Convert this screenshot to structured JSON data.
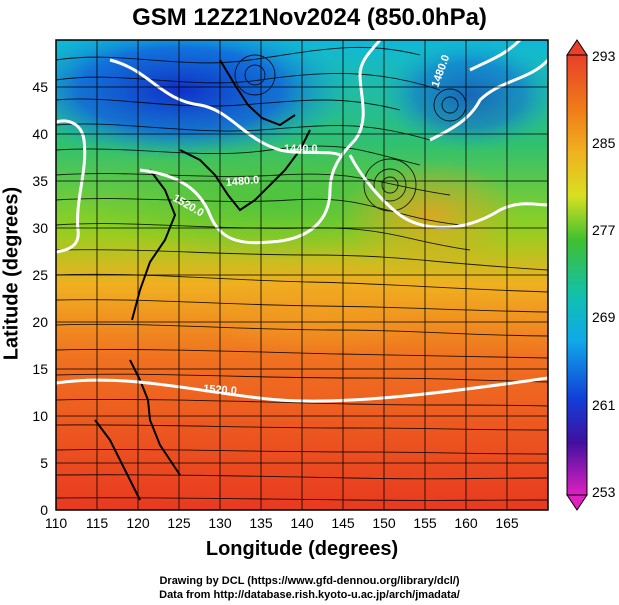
{
  "title": "GSM 12Z21Nov2024 (850.0hPa)",
  "x_axis": {
    "label": "Longitude (degrees)",
    "ticks": [
      "110",
      "115",
      "120",
      "125",
      "130",
      "135",
      "140",
      "145",
      "150",
      "155",
      "160",
      "165"
    ]
  },
  "y_axis": {
    "label": "Latitude  (degrees)",
    "ticks": [
      "0",
      "5",
      "10",
      "15",
      "20",
      "25",
      "30",
      "35",
      "40",
      "45"
    ]
  },
  "colorbar": {
    "ticks": [
      "293",
      "285",
      "277",
      "269",
      "261",
      "253"
    ]
  },
  "contours": {
    "labels": [
      "1440.0",
      "1480.0",
      "1520.0",
      "1520.0",
      "1480.0"
    ]
  },
  "credits": {
    "line1": "Drawing by DCL (https://www.gfd-dennou.org/library/dcl/)",
    "line2": "Data from http://database.rish.kyoto-u.ac.jp/arch/jmadata/"
  },
  "colors": {
    "cold": "#1040d0",
    "cool": "#00b0d0",
    "mild": "#30c030",
    "warm": "#f0c020",
    "hot": "#e83a20",
    "contour": "#ffffff"
  },
  "chart_data": {
    "type": "heatmap",
    "title": "GSM 12Z21Nov2024 (850.0hPa)",
    "xlabel": "Longitude (degrees)",
    "ylabel": "Latitude  (degrees)",
    "xlim": [
      110,
      170
    ],
    "ylim": [
      0,
      50
    ],
    "colorbar_range": [
      253,
      293
    ],
    "colorbar_ticks": [
      293,
      285,
      277,
      269,
      261,
      253
    ],
    "grid": true
  }
}
